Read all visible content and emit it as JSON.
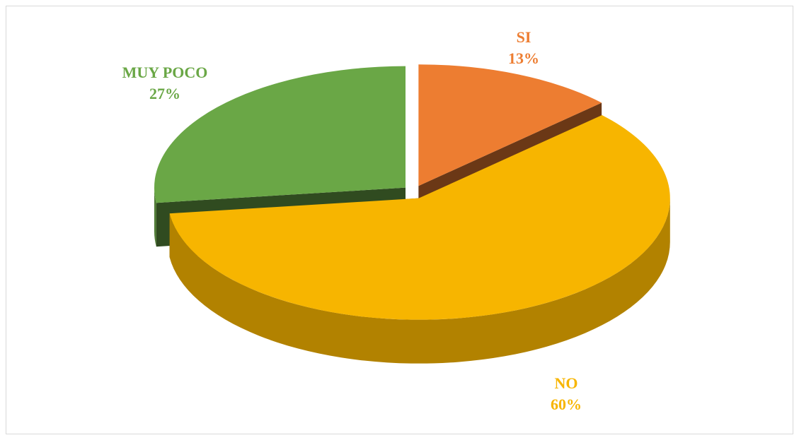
{
  "chart_data": {
    "type": "pie",
    "categories": [
      "SI",
      "NO",
      "MUY POCO"
    ],
    "values": [
      13,
      60,
      27
    ],
    "value_labels": [
      "13%",
      "60%",
      "27%"
    ],
    "colors": [
      "#ed7d31",
      "#f7b500",
      "#6aa746"
    ]
  }
}
